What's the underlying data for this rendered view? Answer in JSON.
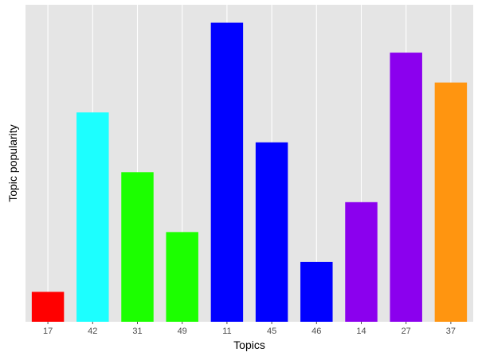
{
  "chart_data": {
    "type": "bar",
    "categories": [
      "17",
      "42",
      "31",
      "49",
      "11",
      "45",
      "46",
      "14",
      "27",
      "37"
    ],
    "values": [
      1,
      7,
      5,
      3,
      10,
      6,
      2,
      4,
      9,
      8
    ],
    "colors": [
      "#ff0000",
      "#1cffff",
      "#1cff00",
      "#1cff00",
      "#0000ff",
      "#0000ff",
      "#0000ff",
      "#8b00ee",
      "#8b00ee",
      "#ff9510"
    ],
    "xlabel": "Topics",
    "ylabel": "Topic popularity",
    "ylim": [
      0,
      10.6
    ],
    "y_tick_labels": "none",
    "grid": "vertical major lines at categories",
    "panel_background": "#e5e5e5",
    "grid_color": "#ffffff",
    "legend": "none"
  }
}
